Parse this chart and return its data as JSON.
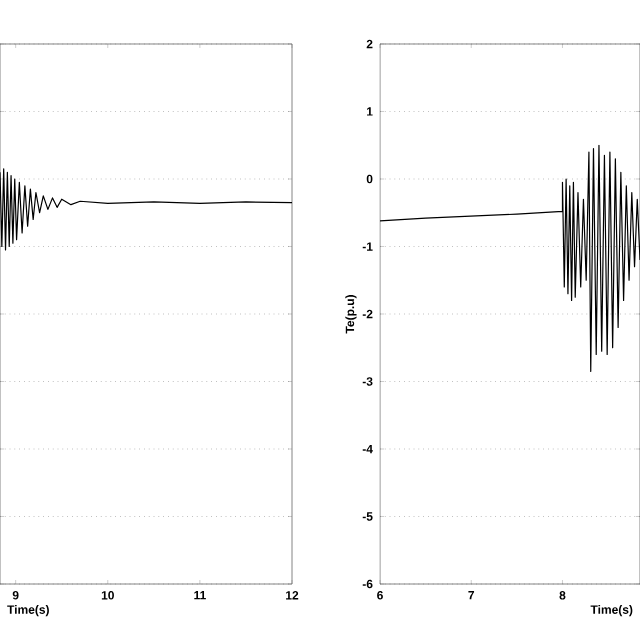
{
  "chart_data": [
    {
      "type": "line",
      "xlabel": "Time(s)",
      "xlim": [
        8.83,
        12
      ],
      "ylim": [
        -6,
        2
      ],
      "xticks": [
        9,
        10,
        11,
        12
      ],
      "yticks": [
        -6,
        -5,
        -4,
        -3,
        -2,
        -1,
        0,
        1,
        2
      ],
      "tick_labels": "x",
      "grid": "y",
      "series": [
        {
          "color": "#000000",
          "x": [
            8.83,
            8.85,
            8.87,
            8.89,
            8.91,
            8.93,
            8.95,
            8.97,
            8.99,
            9.01,
            9.04,
            9.07,
            9.1,
            9.13,
            9.16,
            9.19,
            9.22,
            9.26,
            9.3,
            9.35,
            9.4,
            9.45,
            9.5,
            9.6,
            9.7,
            10,
            10.5,
            11,
            11.5,
            12
          ],
          "values": [
            0.1,
            -1.0,
            0.15,
            -1.05,
            0.1,
            -1.0,
            0.05,
            -0.95,
            0.0,
            -0.9,
            -0.05,
            -0.8,
            -0.1,
            -0.7,
            -0.15,
            -0.6,
            -0.2,
            -0.5,
            -0.25,
            -0.45,
            -0.28,
            -0.42,
            -0.3,
            -0.38,
            -0.33,
            -0.36,
            -0.34,
            -0.36,
            -0.34,
            -0.35
          ]
        }
      ]
    },
    {
      "type": "line",
      "xlabel": "Time(s)",
      "ylabel": "Te(p.u)",
      "xlim": [
        6,
        8.85
      ],
      "ylim": [
        -6,
        2
      ],
      "xticks": [
        6,
        7,
        8
      ],
      "yticks": [
        -6,
        -5,
        -4,
        -3,
        -2,
        -1,
        0,
        1,
        2
      ],
      "grid": "y",
      "series": [
        {
          "color": "#000000",
          "x": [
            6,
            6.5,
            7,
            7.5,
            8,
            8.0,
            8.02,
            8.04,
            8.06,
            8.08,
            8.1,
            8.12,
            8.14,
            8.17,
            8.2,
            8.23,
            8.26,
            8.29,
            8.31,
            8.34,
            8.37,
            8.4,
            8.43,
            8.46,
            8.49,
            8.52,
            8.55,
            8.58,
            8.61,
            8.64,
            8.67,
            8.7,
            8.73,
            8.76,
            8.79,
            8.82,
            8.85
          ],
          "values": [
            -0.62,
            -0.58,
            -0.55,
            -0.52,
            -0.48,
            -0.05,
            -1.6,
            0.0,
            -1.7,
            -0.1,
            -1.8,
            -0.05,
            -1.75,
            -0.2,
            -1.6,
            -0.3,
            -1.5,
            0.4,
            -2.85,
            0.45,
            -2.6,
            0.5,
            -2.55,
            0.35,
            -2.6,
            0.4,
            -2.5,
            0.3,
            -2.2,
            0.1,
            -1.8,
            -0.1,
            -1.5,
            -0.2,
            -1.3,
            -0.3,
            -1.2
          ]
        }
      ]
    }
  ]
}
